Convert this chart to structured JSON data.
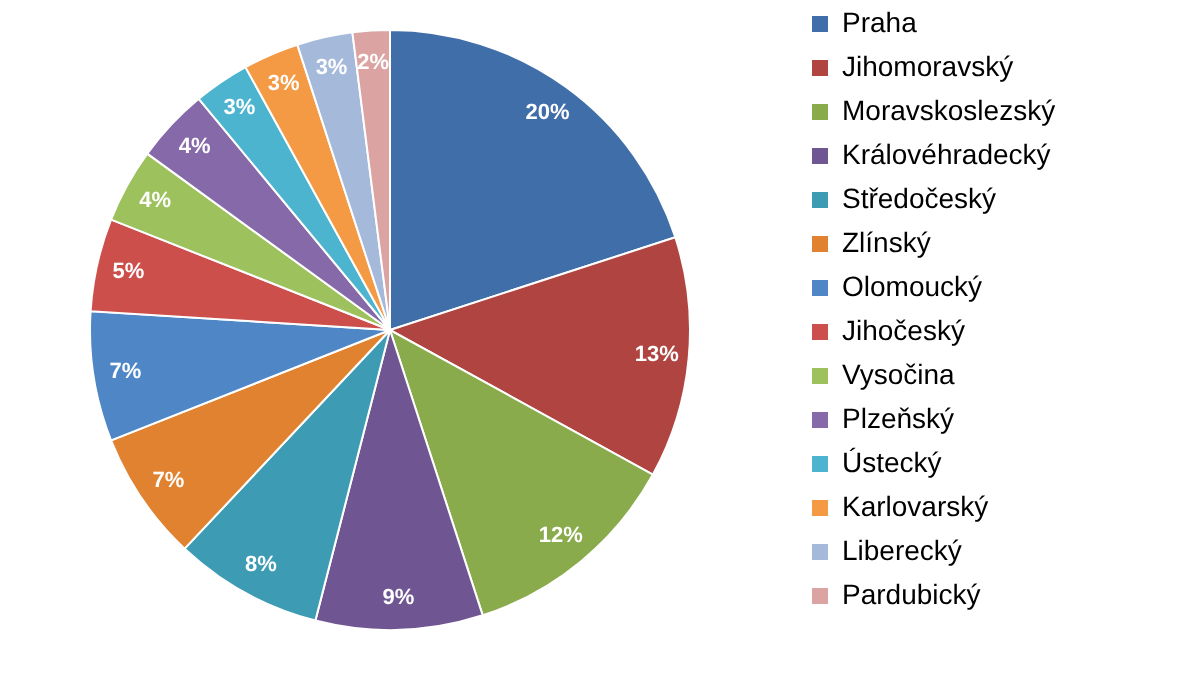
{
  "chart_data": {
    "type": "pie",
    "categories": [
      "Praha",
      "Jihomoravský",
      "Moravskoslezský",
      "Královéhradecký",
      "Středočeský",
      "Zlínský",
      "Olomoucký",
      "Jihočeský",
      "Vysočina",
      "Plzeňský",
      "Ústecký",
      "Karlovarský",
      "Liberecký",
      "Pardubický"
    ],
    "values": [
      20,
      13,
      12,
      9,
      8,
      7,
      7,
      5,
      4,
      4,
      3,
      3,
      3,
      2
    ],
    "value_labels": [
      "20%",
      "13%",
      "12%",
      "9%",
      "8%",
      "7%",
      "7%",
      "5%",
      "4%",
      "4%",
      "3%",
      "3%",
      "3%",
      "2%"
    ],
    "colors": [
      "#3f6ea8",
      "#b04441",
      "#8aab4c",
      "#6f5592",
      "#3d9cb4",
      "#e0822f",
      "#4f86c6",
      "#cc4f4b",
      "#9dc15c",
      "#8569a8",
      "#4db4cf",
      "#f59a44",
      "#a5b9da",
      "#dba3a2"
    ],
    "legend": "right"
  }
}
